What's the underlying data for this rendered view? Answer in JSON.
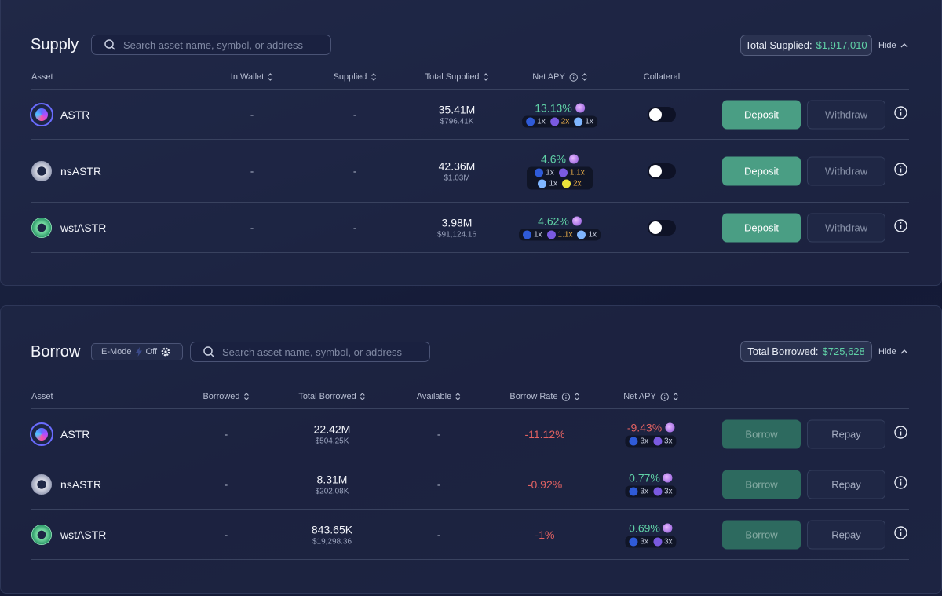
{
  "supply": {
    "title": "Supply",
    "search_placeholder": "Search asset name, symbol, or address",
    "total_label": "Total Supplied:",
    "total_value": "$1,917,010",
    "hide": "Hide",
    "columns": [
      "Asset",
      "In Wallet",
      "Supplied",
      "Total Supplied",
      "Net APY",
      "Collateral"
    ],
    "actions": [
      "Deposit",
      "Withdraw"
    ],
    "rows": [
      {
        "asset": "ASTR",
        "in_wallet": "-",
        "supplied": "-",
        "total": "35.41M",
        "total_usd": "$796.41K",
        "net_apy": "13.13%",
        "collateral": false,
        "badges": [
          {
            "text": "1x",
            "color": "#c9cfe0"
          },
          {
            "text": "2x",
            "color": "#f0b24a"
          },
          {
            "text": "1x",
            "color": "#c9cfe0"
          }
        ]
      },
      {
        "asset": "nsASTR",
        "in_wallet": "-",
        "supplied": "-",
        "total": "42.36M",
        "total_usd": "$1.03M",
        "net_apy": "4.6%",
        "collateral": false,
        "badges": [
          {
            "text": "1x",
            "color": "#c9cfe0"
          },
          {
            "text": "1.1x",
            "color": "#f0b24a"
          },
          {
            "text": "1x",
            "color": "#c9cfe0"
          },
          {
            "text": "2x",
            "color": "#f0b24a"
          }
        ]
      },
      {
        "asset": "wstASTR",
        "in_wallet": "-",
        "supplied": "-",
        "total": "3.98M",
        "total_usd": "$91,124.16",
        "net_apy": "4.62%",
        "collateral": false,
        "badges": [
          {
            "text": "1x",
            "color": "#c9cfe0"
          },
          {
            "text": "1.1x",
            "color": "#f0b24a"
          },
          {
            "text": "1x",
            "color": "#c9cfe0"
          }
        ]
      }
    ]
  },
  "borrow": {
    "title": "Borrow",
    "emode_label": "E-Mode",
    "emode_state": "Off",
    "search_placeholder": "Search asset name, symbol, or address",
    "total_label": "Total Borrowed:",
    "total_value": "$725,628",
    "hide": "Hide",
    "columns": [
      "Asset",
      "Borrowed",
      "Total Borrowed",
      "Available",
      "Borrow Rate",
      "Net APY"
    ],
    "actions": [
      "Borrow",
      "Repay"
    ],
    "rows": [
      {
        "asset": "ASTR",
        "borrowed": "-",
        "total": "22.42M",
        "total_usd": "$504.25K",
        "available": "-",
        "borrow_rate": "-11.12%",
        "net_apy": "-9.43%",
        "badges": [
          {
            "text": "3x",
            "color": "#c9cfe0"
          },
          {
            "text": "3x",
            "color": "#c9cfe0"
          }
        ]
      },
      {
        "asset": "nsASTR",
        "borrowed": "-",
        "total": "8.31M",
        "total_usd": "$202.08K",
        "available": "-",
        "borrow_rate": "-0.92%",
        "net_apy": "0.77%",
        "badges": [
          {
            "text": "3x",
            "color": "#c9cfe0"
          },
          {
            "text": "3x",
            "color": "#c9cfe0"
          }
        ]
      },
      {
        "asset": "wstASTR",
        "borrowed": "-",
        "total": "843.65K",
        "total_usd": "$19,298.36",
        "available": "-",
        "borrow_rate": "-1%",
        "net_apy": "0.69%",
        "badges": [
          {
            "text": "3x",
            "color": "#c9cfe0"
          },
          {
            "text": "3x",
            "color": "#c9cfe0"
          }
        ]
      }
    ]
  }
}
